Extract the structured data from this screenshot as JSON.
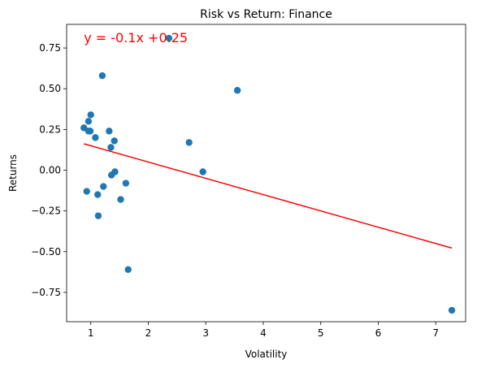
{
  "chart_data": {
    "type": "scatter",
    "title": "Risk vs Return: Finance",
    "xlabel": "Volatility",
    "ylabel": "Returns",
    "xlim": [
      0.58,
      7.52
    ],
    "ylim": [
      -0.93,
      0.895
    ],
    "xticks": [
      1,
      2,
      3,
      4,
      5,
      6,
      7
    ],
    "yticks": [
      -0.75,
      -0.5,
      -0.25,
      0.0,
      0.25,
      0.5,
      0.75
    ],
    "xtick_labels": [
      "1",
      "2",
      "3",
      "4",
      "5",
      "6",
      "7"
    ],
    "ytick_labels": [
      "−0.75",
      "−0.50",
      "−0.25",
      "0.00",
      "0.25",
      "0.50",
      "0.75"
    ],
    "grid": false,
    "series": [
      {
        "points": [
          [
            0.88,
            0.26
          ],
          [
            0.93,
            -0.13
          ],
          [
            0.96,
            0.3
          ],
          [
            0.96,
            0.24
          ],
          [
            0.99,
            0.24
          ],
          [
            1.0,
            0.34
          ],
          [
            1.08,
            0.2
          ],
          [
            1.12,
            -0.15
          ],
          [
            1.13,
            -0.28
          ],
          [
            1.2,
            0.58
          ],
          [
            1.22,
            -0.1
          ],
          [
            1.32,
            0.24
          ],
          [
            1.35,
            0.14
          ],
          [
            1.36,
            -0.03
          ],
          [
            1.41,
            0.18
          ],
          [
            1.42,
            -0.01
          ],
          [
            1.52,
            -0.18
          ],
          [
            1.61,
            -0.08
          ],
          [
            1.65,
            -0.61
          ],
          [
            2.36,
            0.81
          ],
          [
            2.71,
            0.17
          ],
          [
            2.95,
            -0.01
          ],
          [
            3.55,
            0.49
          ],
          [
            7.28,
            -0.86
          ]
        ],
        "color": "#1f77b4"
      }
    ],
    "trendline": {
      "slope": -0.1,
      "intercept": 0.25,
      "x_range": [
        0.88,
        7.28
      ],
      "color": "#ff0000",
      "label": "y = -0.1x +0.25",
      "label_anchor": [
        0.88,
        0.81
      ]
    }
  }
}
